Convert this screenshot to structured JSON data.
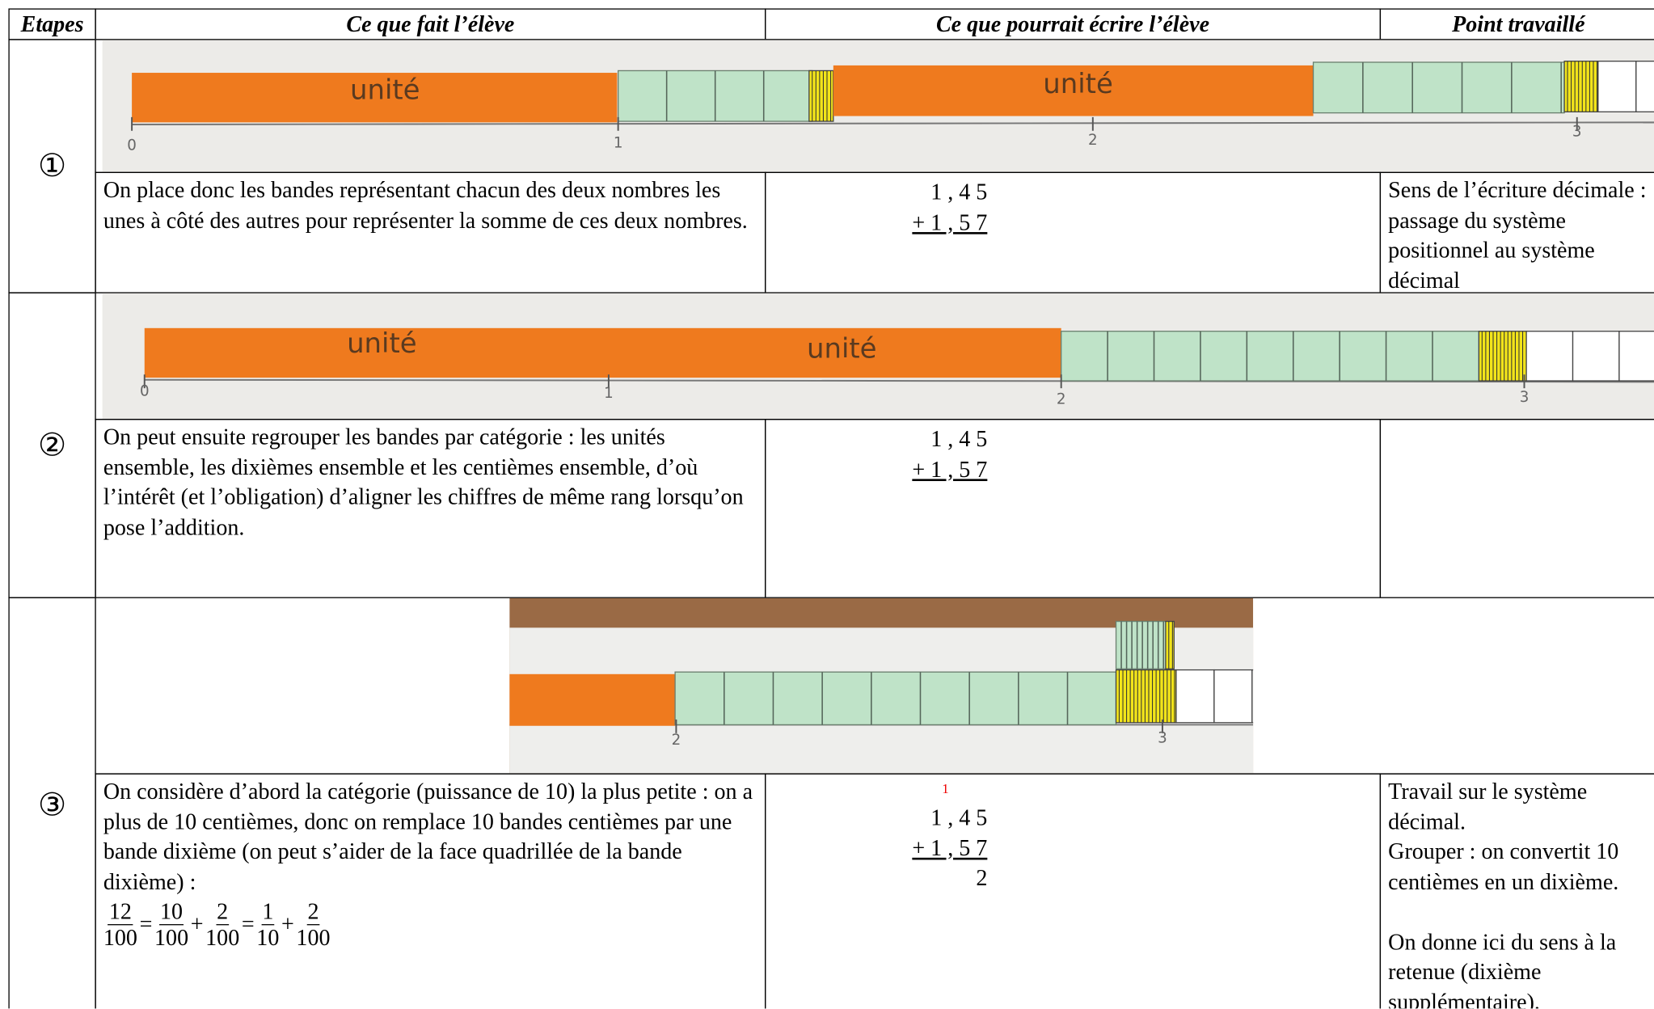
{
  "header": [
    "Etapes",
    "Ce que fait l’élève",
    "Ce que pourrait écrire l’élève",
    "Point travaillé"
  ],
  "steps": [
    {
      "number": "①",
      "photo": {
        "labels": [
          "unité",
          "unité"
        ],
        "ticks": [
          "0",
          "1",
          "2",
          "3"
        ]
      },
      "text": "On place donc les bandes représentant chacun des deux nombres les unes à côté des autres pour représenter la somme de ces deux nombres.",
      "computation": {
        "first": "1 , 4 5",
        "second": "+ 1 , 5 7"
      },
      "point": [
        [
          "Sens de l’écriture décimale : passage du système positionnel au système décimal"
        ]
      ]
    },
    {
      "number": "②",
      "photo": {
        "labels": [
          "unité",
          "unité"
        ],
        "ticks": [
          "0",
          "1",
          "2",
          "3"
        ]
      },
      "text": "On peut ensuite regrouper les bandes par catégorie : les unités ensemble, les dixièmes ensemble et les centièmes ensemble, d’où l’intérêt (et l’obligation) d’aligner les chiffres de même rang lorsqu’on pose l’addition.",
      "computation": {
        "first": "1 , 4 5",
        "second": "+ 1 , 5 7"
      }
    },
    {
      "number": "③",
      "photo": {
        "ticks": [
          "2",
          "3"
        ]
      },
      "text": "On considère d’abord la catégorie (puissance de 10) la plus petite : on a plus de 10 centièmes, donc on remplace 10 bandes centièmes par une bande dixième (on peut s’aider de la face quadrillée de la bande dixième)  :",
      "fractions": [
        {
          "num": "12",
          "den": "100"
        },
        {
          "num": "10",
          "den": "100"
        },
        {
          "num": "2",
          "den": "100"
        },
        {
          "num": "1",
          "den": "10"
        },
        {
          "num": "2",
          "den": "100"
        }
      ],
      "operators": [
        "=",
        "+",
        "=",
        "+"
      ],
      "computation": {
        "carry": "1",
        "first": "1 , 4 5",
        "second": "+ 1 , 5 7",
        "result": "2"
      },
      "point": [
        [
          "Travail sur le système décimal.",
          "Grouper : on convertit 10 centièmes en un dixième."
        ],
        [
          "On donne ici du sens à la retenue (dixième supplémentaire)."
        ]
      ]
    }
  ]
}
